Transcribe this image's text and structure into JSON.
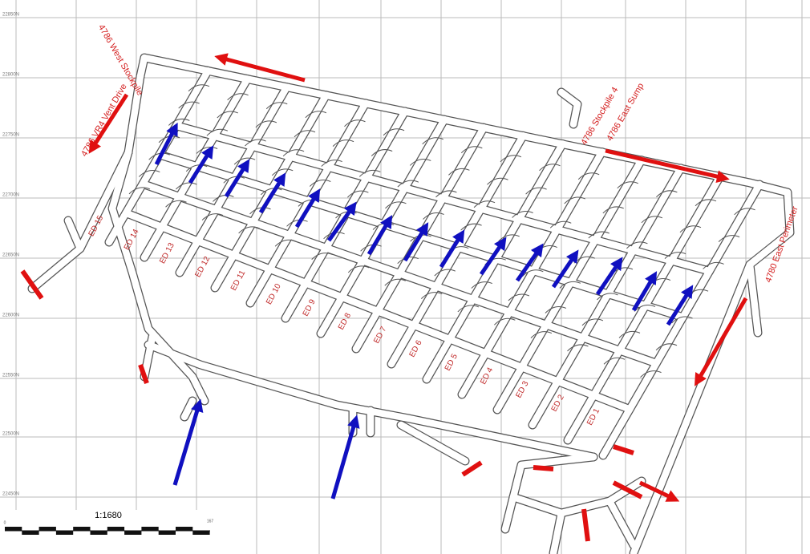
{
  "grid": {
    "northings": [
      "22850N",
      "22800N",
      "22750N",
      "22700N",
      "22650N",
      "22600N",
      "22550N",
      "22500N",
      "22450N"
    ]
  },
  "labels": {
    "extraction_drives": [
      "ED 1",
      "ED 2",
      "ED 3",
      "ED 4",
      "ED 5",
      "ED 6",
      "ED 7",
      "ED 8",
      "ED 9",
      "ED 10",
      "ED 11",
      "ED 12",
      "ED 13",
      "ED 14",
      "ED 15"
    ],
    "west_stockpile": "4786 West Stockpile",
    "vent_drive": "4786 VR4 Vent Drive",
    "stockpile": "4786 Stockpile 4",
    "east_sump": "4786 East Sump",
    "east_perimeter": "4780 East Perimeter"
  },
  "scale": {
    "ratio": "1:1680",
    "start": "0",
    "end": "167"
  }
}
